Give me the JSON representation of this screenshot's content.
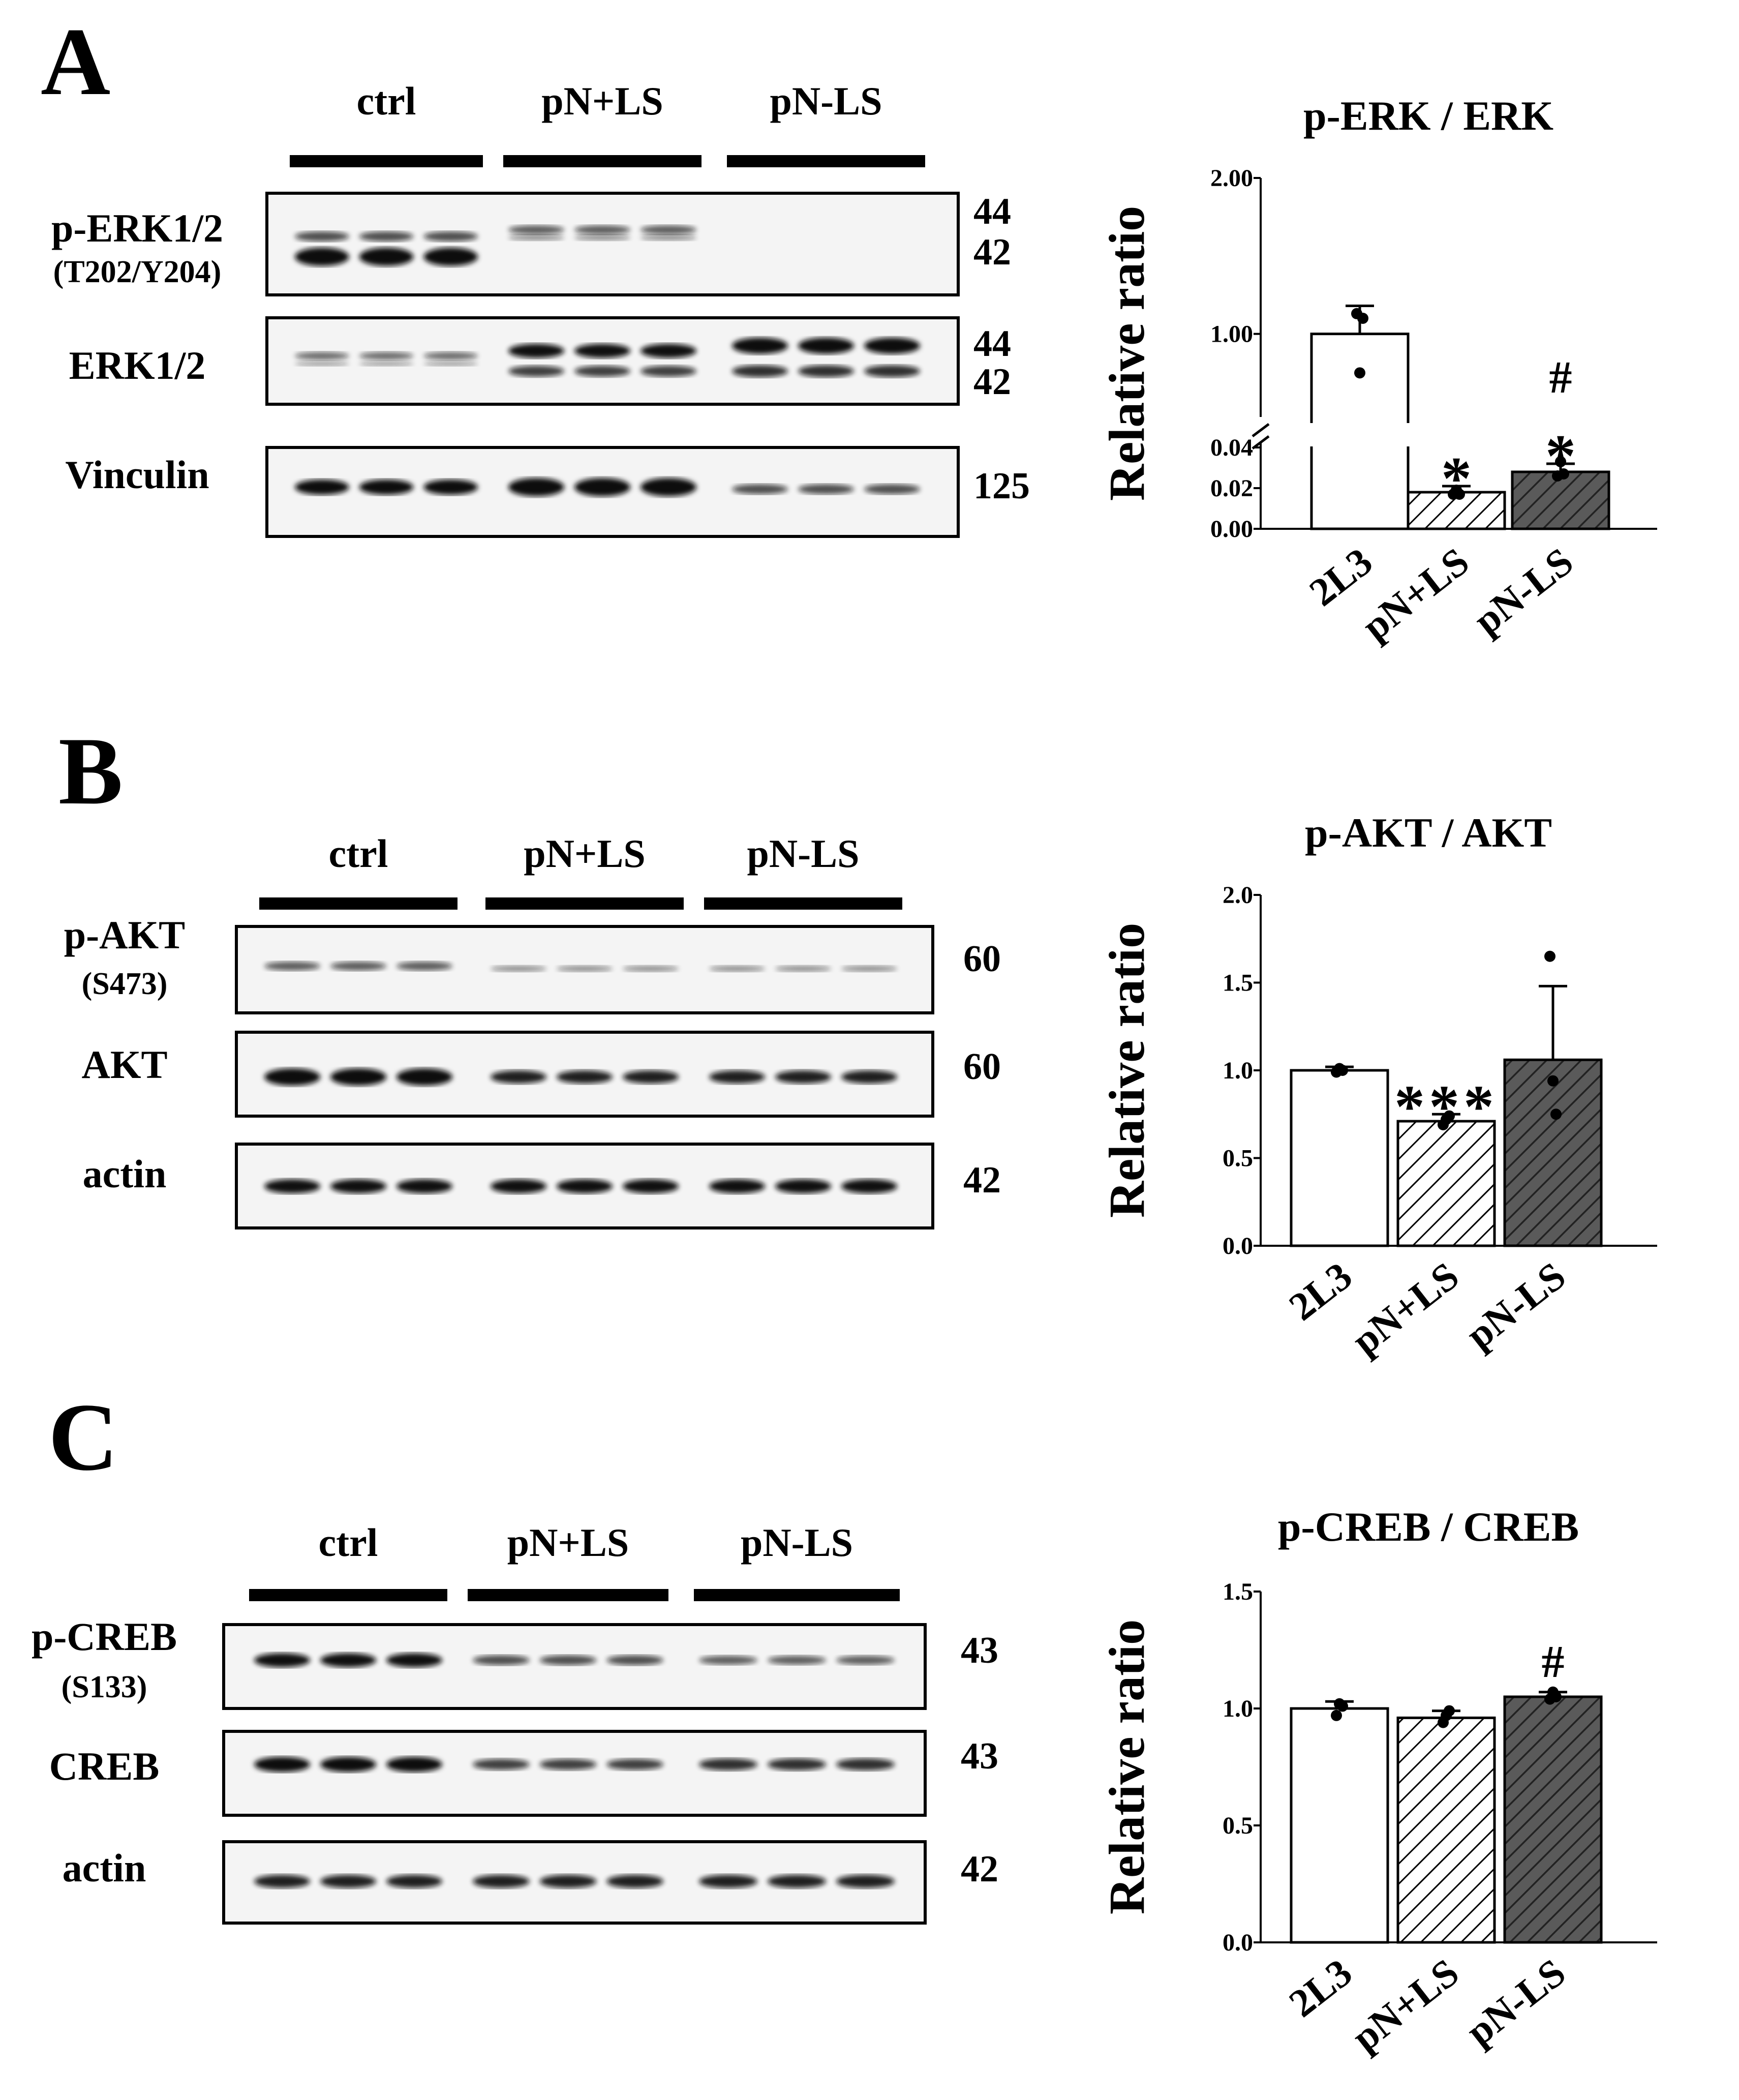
{
  "panels": [
    {
      "letter": "A",
      "blot": {
        "groups": [
          "ctrl",
          "pN+LS",
          "pN-LS"
        ],
        "rows": [
          {
            "label": "p-ERK1/2",
            "sublabel": "(T202/Y204)",
            "mw": [
              "44",
              "42"
            ]
          },
          {
            "label": "ERK1/2",
            "sublabel": "",
            "mw": [
              "44",
              "42"
            ]
          },
          {
            "label": "Vinculin",
            "sublabel": "",
            "mw": [
              "125"
            ]
          }
        ]
      }
    },
    {
      "letter": "B",
      "blot": {
        "groups": [
          "ctrl",
          "pN+LS",
          "pN-LS"
        ],
        "rows": [
          {
            "label": "p-AKT",
            "sublabel": "(S473)",
            "mw": [
              "60"
            ]
          },
          {
            "label": "AKT",
            "sublabel": "",
            "mw": [
              "60"
            ]
          },
          {
            "label": "actin",
            "sublabel": "",
            "mw": [
              "42"
            ]
          }
        ]
      }
    },
    {
      "letter": "C",
      "blot": {
        "groups": [
          "ctrl",
          "pN+LS",
          "pN-LS"
        ],
        "rows": [
          {
            "label": "p-CREB",
            "sublabel": "(S133)",
            "mw": [
              "43"
            ]
          },
          {
            "label": "CREB",
            "sublabel": "",
            "mw": [
              "43"
            ]
          },
          {
            "label": "actin",
            "sublabel": "",
            "mw": [
              "42"
            ]
          }
        ]
      }
    }
  ],
  "chart_data": [
    {
      "type": "bar",
      "title": "p-ERK / ERK",
      "ylabel": "Relative ratio",
      "categories": [
        "2L3",
        "pN+LS",
        "pN-LS"
      ],
      "values": [
        1.0,
        0.018,
        0.028
      ],
      "errors": [
        0.18,
        0.003,
        0.004
      ],
      "points": [
        [
          1.13,
          0.75,
          1.1
        ],
        [
          0.017,
          0.019,
          0.017
        ],
        [
          0.026,
          0.033,
          0.027
        ]
      ],
      "broken_axis": true,
      "lower_range": [
        0,
        0.04
      ],
      "lower_ticks": [
        "0.00",
        "0.02",
        "0.04"
      ],
      "upper_range": [
        0.5,
        2.0
      ],
      "upper_ticks": [
        "1.00",
        "2.00"
      ],
      "annotations": [
        [],
        [
          "*"
        ],
        [
          "#",
          "*"
        ]
      ],
      "fills": [
        "white",
        "light-hatch",
        "dark-hatch"
      ]
    },
    {
      "type": "bar",
      "title": "p-AKT / AKT",
      "ylabel": "Relative ratio",
      "categories": [
        "2L3",
        "pN+LS",
        "pN-LS"
      ],
      "values": [
        1.0,
        0.71,
        1.06
      ],
      "errors": [
        0.02,
        0.04,
        0.42
      ],
      "points": [
        [
          0.99,
          1.01,
          1.0
        ],
        [
          0.69,
          0.72,
          0.74
        ],
        [
          1.65,
          0.94,
          0.75
        ]
      ],
      "ylim": [
        0,
        2.0
      ],
      "ticks": [
        "0.0",
        "0.5",
        "1.0",
        "1.5",
        "2.0"
      ],
      "annotations": [
        [],
        [
          "***"
        ],
        []
      ],
      "fills": [
        "white",
        "light-hatch",
        "dark-hatch"
      ]
    },
    {
      "type": "bar",
      "title": "p-CREB / CREB",
      "ylabel": "Relative ratio",
      "categories": [
        "2L3",
        "pN+LS",
        "pN-LS"
      ],
      "values": [
        1.0,
        0.96,
        1.05
      ],
      "errors": [
        0.03,
        0.03,
        0.02
      ],
      "points": [
        [
          0.97,
          1.02,
          1.01
        ],
        [
          0.94,
          0.97,
          0.99
        ],
        [
          1.04,
          1.07,
          1.05
        ]
      ],
      "ylim": [
        0,
        1.5
      ],
      "ticks": [
        "0.0",
        "0.5",
        "1.0",
        "1.5"
      ],
      "annotations": [
        [],
        [],
        [
          "#"
        ]
      ],
      "fills": [
        "white",
        "light-hatch",
        "dark-hatch"
      ]
    }
  ],
  "colors": {
    "ink": "#000000",
    "dark_fill": "#595959",
    "blot_bg": "#f4f4f4",
    "band": "#111111"
  }
}
